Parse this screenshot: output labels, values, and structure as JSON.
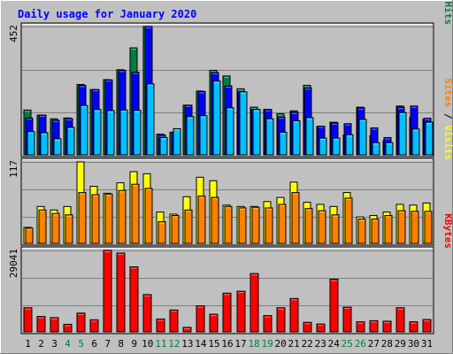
{
  "colors": {
    "background": "#c0c0c0",
    "title": "#0000ff",
    "hits": "#008040",
    "files": "#0000ff",
    "pages": "#00c0ff",
    "visits": "#ffff00",
    "sites": "#ff8000",
    "kbytes": "#ff0000",
    "weekend_day": "#008040",
    "weekday": "#000000"
  },
  "chart_data": [
    {
      "type": "bar",
      "title": "Daily usage for January 2020",
      "panel": "hits-files-pages",
      "y_max_label": "452",
      "ylim": [
        0,
        452
      ],
      "axis_label_parts": [
        {
          "text": "Pages",
          "color_key": "pages"
        },
        {
          "text": " / ",
          "color_key": "weekday"
        },
        {
          "text": "Files",
          "color_key": "files"
        },
        {
          "text": " / ",
          "color_key": "weekday"
        },
        {
          "text": "Hits",
          "color_key": "hits"
        }
      ],
      "categories": [
        "1",
        "2",
        "3",
        "4",
        "5",
        "6",
        "7",
        "8",
        "9",
        "10",
        "11",
        "12",
        "13",
        "14",
        "15",
        "16",
        "17",
        "18",
        "19",
        "20",
        "21",
        "22",
        "23",
        "24",
        "25",
        "26",
        "27",
        "28",
        "29",
        "30",
        "31"
      ],
      "series": [
        {
          "name": "Hits",
          "color_key": "hits",
          "values": [
            158,
            140,
            127,
            130,
            248,
            230,
            265,
            300,
            377,
            452,
            73,
            80,
            175,
            225,
            298,
            278,
            233,
            168,
            160,
            145,
            155,
            245,
            100,
            115,
            70,
            168,
            68,
            50,
            172,
            132,
            126
          ]
        },
        {
          "name": "Files",
          "color_key": "files",
          "values": [
            130,
            140,
            122,
            128,
            245,
            230,
            264,
            298,
            291,
            452,
            70,
            78,
            175,
            223,
            290,
            243,
            222,
            160,
            160,
            133,
            150,
            236,
            101,
            113,
            110,
            166,
            95,
            61,
            168,
            172,
            129
          ]
        },
        {
          "name": "Pages",
          "color_key": "pages",
          "values": [
            82,
            78,
            57,
            97,
            174,
            160,
            156,
            158,
            157,
            250,
            61,
            92,
            135,
            138,
            260,
            166,
            222,
            160,
            127,
            80,
            120,
            131,
            59,
            59,
            71,
            125,
            43,
            43,
            149,
            91,
            115
          ]
        }
      ]
    },
    {
      "type": "bar",
      "panel": "visits-sites",
      "y_max_label": "117",
      "ylim": [
        0,
        117
      ],
      "axis_label_parts": [
        {
          "text": "Sites",
          "color_key": "sites"
        },
        {
          "text": " / ",
          "color_key": "weekday"
        },
        {
          "text": "Visits",
          "color_key": "visits"
        }
      ],
      "categories": [
        "1",
        "2",
        "3",
        "4",
        "5",
        "6",
        "7",
        "8",
        "9",
        "10",
        "11",
        "12",
        "13",
        "14",
        "15",
        "16",
        "17",
        "18",
        "19",
        "20",
        "21",
        "22",
        "23",
        "24",
        "25",
        "26",
        "27",
        "28",
        "29",
        "30",
        "31"
      ],
      "series": [
        {
          "name": "Visits",
          "color_key": "visits",
          "values": [
            23,
            53,
            48,
            53,
            117,
            82,
            72,
            87,
            103,
            100,
            45,
            42,
            67,
            95,
            90,
            55,
            53,
            53,
            60,
            66,
            88,
            59,
            56,
            53,
            73,
            38,
            40,
            45,
            56,
            55,
            58
          ]
        },
        {
          "name": "Sites",
          "color_key": "sites",
          "values": [
            22,
            48,
            43,
            41,
            73,
            70,
            71,
            76,
            85,
            79,
            31,
            40,
            48,
            68,
            66,
            53,
            51,
            52,
            51,
            56,
            73,
            50,
            47,
            41,
            65,
            35,
            35,
            40,
            47,
            46,
            46
          ]
        }
      ]
    },
    {
      "type": "bar",
      "panel": "kbytes",
      "y_max_label": "29041",
      "ylim": [
        0,
        29041
      ],
      "axis_label_parts": [
        {
          "text": "KBytes",
          "color_key": "kbytes"
        }
      ],
      "categories": [
        "1",
        "2",
        "3",
        "4",
        "5",
        "6",
        "7",
        "8",
        "9",
        "10",
        "11",
        "12",
        "13",
        "14",
        "15",
        "16",
        "17",
        "18",
        "19",
        "20",
        "21",
        "22",
        "23",
        "24",
        "25",
        "26",
        "27",
        "28",
        "29",
        "30",
        "31"
      ],
      "series": [
        {
          "name": "KBytes",
          "color_key": "kbytes",
          "values": [
            8600,
            5500,
            5100,
            2700,
            6700,
            4300,
            29041,
            28100,
            23200,
            13300,
            4600,
            7800,
            1600,
            9300,
            6300,
            13800,
            14500,
            20800,
            5800,
            8600,
            11900,
            3400,
            2800,
            18800,
            8800,
            3600,
            4000,
            3800,
            8600,
            3600,
            4400
          ]
        }
      ],
      "x_tick_weekend_flags": [
        false,
        false,
        false,
        true,
        true,
        false,
        false,
        false,
        false,
        false,
        true,
        true,
        false,
        false,
        false,
        false,
        false,
        true,
        true,
        false,
        false,
        false,
        false,
        false,
        true,
        true,
        false,
        false,
        false,
        false,
        false
      ]
    }
  ]
}
